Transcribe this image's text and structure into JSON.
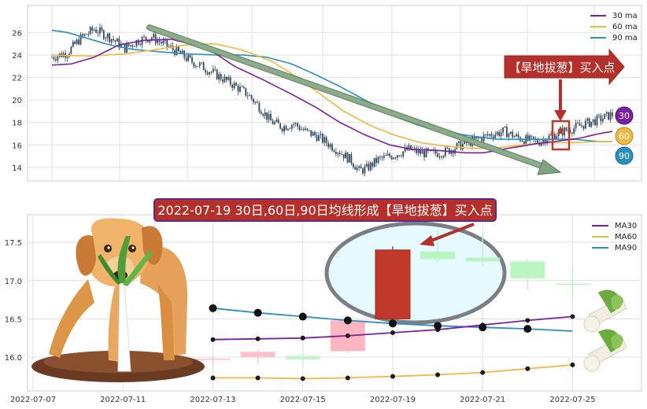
{
  "chart_data": [
    {
      "type": "candlestick",
      "panel": "overview",
      "ylim": [
        12.8,
        28.4
      ],
      "yticks": [
        14,
        16,
        18,
        20,
        22,
        24,
        26
      ],
      "grid": true,
      "legend_position": "top-right",
      "legend": [
        "30 ma",
        "60 ma",
        "90 ma"
      ],
      "series_colors": {
        "ma30": "#7b1fa2",
        "ma60": "#f0b840",
        "ma90": "#2a8fc0"
      },
      "ma_anchors": {
        "ma30": [
          [
            0,
            23.1
          ],
          [
            10,
            23.2
          ],
          [
            22,
            23.8
          ],
          [
            35,
            24.9
          ],
          [
            48,
            25.3
          ],
          [
            62,
            25.4
          ],
          [
            72,
            25.0
          ],
          [
            82,
            24.5
          ],
          [
            95,
            23.0
          ],
          [
            110,
            21.8
          ],
          [
            125,
            20.5
          ],
          [
            138,
            19.3
          ],
          [
            150,
            18.0
          ],
          [
            163,
            16.9
          ],
          [
            176,
            16.0
          ],
          [
            188,
            15.6
          ],
          [
            202,
            15.5
          ],
          [
            215,
            15.3
          ],
          [
            225,
            15.3
          ],
          [
            238,
            15.7
          ],
          [
            252,
            16.1
          ],
          [
            262,
            16.3
          ],
          [
            275,
            16.6
          ],
          [
            285,
            17.0
          ],
          [
            292,
            17.2
          ]
        ],
        "ma60": [
          [
            0,
            24.0
          ],
          [
            20,
            23.9
          ],
          [
            38,
            24.1
          ],
          [
            55,
            24.5
          ],
          [
            70,
            24.9
          ],
          [
            85,
            25.0
          ],
          [
            100,
            24.4
          ],
          [
            115,
            23.4
          ],
          [
            128,
            22.0
          ],
          [
            140,
            20.5
          ],
          [
            152,
            19.0
          ],
          [
            165,
            17.8
          ],
          [
            178,
            16.9
          ],
          [
            192,
            16.2
          ],
          [
            205,
            15.9
          ],
          [
            218,
            15.7
          ],
          [
            230,
            15.7
          ],
          [
            245,
            16.0
          ],
          [
            258,
            16.2
          ],
          [
            272,
            16.2
          ],
          [
            285,
            16.3
          ],
          [
            292,
            16.3
          ]
        ],
        "ma90": [
          [
            0,
            26.2
          ],
          [
            8,
            26.0
          ],
          [
            18,
            25.5
          ],
          [
            30,
            24.9
          ],
          [
            42,
            24.5
          ],
          [
            55,
            24.3
          ],
          [
            70,
            24.1
          ],
          [
            85,
            24.0
          ],
          [
            100,
            24.0
          ],
          [
            112,
            23.8
          ],
          [
            125,
            23.2
          ],
          [
            138,
            22.2
          ],
          [
            150,
            21.2
          ],
          [
            163,
            20.0
          ],
          [
            176,
            18.8
          ],
          [
            190,
            17.8
          ],
          [
            205,
            17.2
          ],
          [
            218,
            16.8
          ],
          [
            232,
            16.5
          ],
          [
            245,
            16.5
          ],
          [
            258,
            16.5
          ],
          [
            272,
            16.5
          ],
          [
            285,
            16.3
          ],
          [
            292,
            16.3
          ]
        ],
        "close": [
          [
            0,
            23.8
          ],
          [
            8,
            24.2
          ],
          [
            15,
            25.5
          ],
          [
            22,
            26.3
          ],
          [
            30,
            25.6
          ],
          [
            38,
            24.6
          ],
          [
            45,
            25.3
          ],
          [
            52,
            25.6
          ],
          [
            58,
            25.0
          ],
          [
            65,
            24.3
          ],
          [
            72,
            23.5
          ],
          [
            80,
            22.8
          ],
          [
            88,
            22.0
          ],
          [
            95,
            21.3
          ],
          [
            102,
            20.5
          ],
          [
            108,
            19.4
          ],
          [
            114,
            18.1
          ],
          [
            120,
            17.6
          ],
          [
            126,
            17.9
          ],
          [
            132,
            17.2
          ],
          [
            138,
            16.8
          ],
          [
            144,
            16.1
          ],
          [
            150,
            15.4
          ],
          [
            156,
            14.6
          ],
          [
            160,
            13.7
          ],
          [
            164,
            13.9
          ],
          [
            170,
            14.7
          ],
          [
            178,
            15.1
          ],
          [
            186,
            15.6
          ],
          [
            192,
            15.3
          ],
          [
            198,
            15.2
          ],
          [
            205,
            15.4
          ],
          [
            212,
            15.9
          ],
          [
            220,
            16.4
          ],
          [
            228,
            16.9
          ],
          [
            236,
            17.2
          ],
          [
            242,
            16.7
          ],
          [
            248,
            16.4
          ],
          [
            254,
            16.3
          ],
          [
            260,
            16.8
          ],
          [
            266,
            17.2
          ],
          [
            272,
            17.5
          ],
          [
            278,
            17.9
          ],
          [
            284,
            18.2
          ],
          [
            290,
            18.6
          ],
          [
            292,
            18.7
          ]
        ]
      },
      "bars": 293,
      "signal_label": "【旱地拔葱】买入点",
      "badges": [
        "30",
        "60",
        "90"
      ]
    },
    {
      "type": "candlestick",
      "panel": "zoom",
      "title": "2022-07-19 30日,60日,90日均线形成【旱地拔葱】买入点",
      "ylim": [
        15.56,
        17.86
      ],
      "yticks": [
        "16.0",
        "16.5",
        "17.0",
        "17.5"
      ],
      "xticks": [
        "2022-07-07",
        "2022-07-11",
        "2022-07-13",
        "2022-07-15",
        "2022-07-19",
        "2022-07-21",
        "2022-07-25"
      ],
      "grid": true,
      "legend_position": "top-right",
      "legend": [
        "MA30",
        "MA60",
        "MA90"
      ],
      "series_colors": {
        "ma30": "#7b1fa2",
        "ma60": "#f0b840",
        "ma90": "#2a8fc0"
      },
      "candles": [
        {
          "x": 4,
          "open": 15.98,
          "close": 15.98,
          "high": 16.02,
          "low": 15.9
        },
        {
          "x": 5,
          "open": 16.0,
          "close": 16.07,
          "high": 16.1,
          "low": 15.92
        },
        {
          "x": 6,
          "open": 15.97,
          "close": 16.02,
          "high": 16.18,
          "low": 15.88
        },
        {
          "x": 7,
          "open": 16.08,
          "close": 16.48,
          "high": 16.55,
          "low": 16.05
        },
        {
          "x": 8,
          "open": 16.5,
          "close": 17.4,
          "high": 17.45,
          "low": 16.48
        },
        {
          "x": 9,
          "open": 17.28,
          "close": 17.38,
          "high": 17.66,
          "low": 17.24
        },
        {
          "x": 10,
          "open": 17.25,
          "close": 17.3,
          "high": 17.62,
          "low": 17.18
        },
        {
          "x": 11,
          "open": 17.03,
          "close": 17.25,
          "high": 17.28,
          "low": 16.88
        },
        {
          "x": 12,
          "open": 16.96,
          "close": 16.96,
          "high": 17.18,
          "low": 16.75
        }
      ],
      "ma30": [
        [
          4,
          16.23
        ],
        [
          5,
          16.24
        ],
        [
          6,
          16.25
        ],
        [
          7,
          16.28
        ],
        [
          8,
          16.32
        ],
        [
          9,
          16.36
        ],
        [
          10,
          16.42
        ],
        [
          11,
          16.48
        ],
        [
          12,
          16.53
        ]
      ],
      "ma60": [
        [
          4,
          15.73
        ],
        [
          5,
          15.73
        ],
        [
          6,
          15.72
        ],
        [
          7,
          15.73
        ],
        [
          8,
          15.75
        ],
        [
          9,
          15.77
        ],
        [
          10,
          15.8
        ],
        [
          11,
          15.85
        ],
        [
          12,
          15.9
        ]
      ],
      "ma90": [
        [
          4,
          16.64
        ],
        [
          5,
          16.58
        ],
        [
          6,
          16.53
        ],
        [
          7,
          16.48
        ],
        [
          8,
          16.44
        ],
        [
          9,
          16.41
        ],
        [
          10,
          16.39
        ],
        [
          11,
          16.37
        ],
        [
          12,
          16.34
        ]
      ],
      "markers": {
        "ma30": [
          4,
          5,
          6,
          7,
          8,
          9,
          10,
          11,
          12
        ],
        "ma60": [
          4,
          5,
          6,
          7,
          8,
          9,
          10,
          11,
          12
        ],
        "ma90_large": [
          4,
          5,
          6,
          7,
          8,
          9,
          10,
          11
        ]
      }
    }
  ]
}
